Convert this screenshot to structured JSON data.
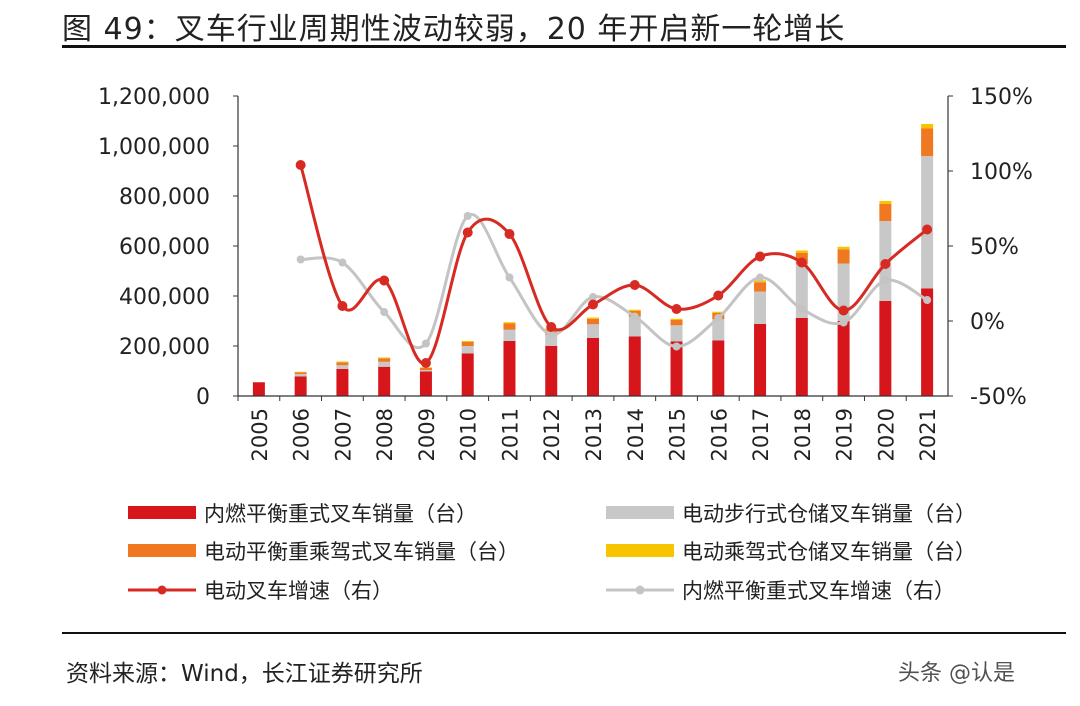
{
  "header": {
    "title": "图 49：叉车行业周期性波动较弱，20 年开启新一轮增长"
  },
  "footer": {
    "source": "资料来源：Wind，长江证券研究所",
    "watermark": "头条 @认是"
  },
  "colors": {
    "ic_sales": "#d7161c",
    "elec_warehouse": "#c8c8c8",
    "elec_counter": "#f07820",
    "elec_ride": "#f8c400",
    "elec_growth": "#d62a22",
    "ic_growth": "#c4c4c4"
  },
  "chart_data": {
    "type": "bar",
    "stacked": true,
    "title": "叉车行业周期性波动较弱，20 年开启新一轮增长",
    "categories": [
      "2005",
      "2006",
      "2007",
      "2008",
      "2009",
      "2010",
      "2011",
      "2012",
      "2013",
      "2014",
      "2015",
      "2016",
      "2017",
      "2018",
      "2019",
      "2020",
      "2021"
    ],
    "y_left": {
      "range": [
        0,
        1200000
      ],
      "ticks": [
        "0",
        "200,000",
        "400,000",
        "600,000",
        "800,000",
        "1,000,000",
        "1,200,000"
      ]
    },
    "y_right": {
      "range": [
        -0.5,
        1.5
      ],
      "ticks": [
        "-50%",
        "0%",
        "50%",
        "100%",
        "150%"
      ]
    },
    "series": [
      {
        "name": "内燃平衡重式叉车销量（台）",
        "type": "bar",
        "axis": "left",
        "values": [
          55000,
          78000,
          108000,
          117000,
          98000,
          170000,
          220000,
          200000,
          232000,
          238000,
          218000,
          222000,
          288000,
          312000,
          300000,
          380000,
          430000
        ]
      },
      {
        "name": "电动步行式仓储叉车销量（台）",
        "type": "bar",
        "axis": "left",
        "values": [
          0,
          10000,
          15000,
          20000,
          6000,
          30000,
          45000,
          45000,
          55000,
          80000,
          65000,
          85000,
          130000,
          215000,
          230000,
          320000,
          530000
        ]
      },
      {
        "name": "电动平衡重乘驾式叉车销量（台）",
        "type": "bar",
        "axis": "left",
        "values": [
          0,
          7000,
          12000,
          14000,
          9000,
          16000,
          25000,
          20000,
          22000,
          22000,
          21000,
          25000,
          37000,
          45000,
          57000,
          68000,
          110000
        ]
      },
      {
        "name": "电动乘驾式仓储叉车销量（台）",
        "type": "bar",
        "axis": "left",
        "values": [
          0,
          2000,
          3000,
          3000,
          2000,
          4000,
          5000,
          5000,
          5000,
          5000,
          5000,
          5000,
          8000,
          10000,
          10000,
          12000,
          18000
        ]
      },
      {
        "name": "电动叉车增速（右）",
        "type": "line",
        "axis": "right",
        "values": [
          null,
          1.04,
          0.1,
          0.27,
          -0.28,
          0.59,
          0.58,
          -0.04,
          0.11,
          0.24,
          0.08,
          0.17,
          0.43,
          0.39,
          0.07,
          0.38,
          0.61
        ]
      },
      {
        "name": "内燃平衡重式叉车增速（右）",
        "type": "line",
        "axis": "right",
        "values": [
          null,
          0.41,
          0.39,
          0.06,
          -0.15,
          0.7,
          0.29,
          -0.09,
          0.16,
          0.03,
          -0.17,
          0.02,
          0.29,
          0.08,
          -0.01,
          0.27,
          0.14
        ]
      }
    ]
  }
}
